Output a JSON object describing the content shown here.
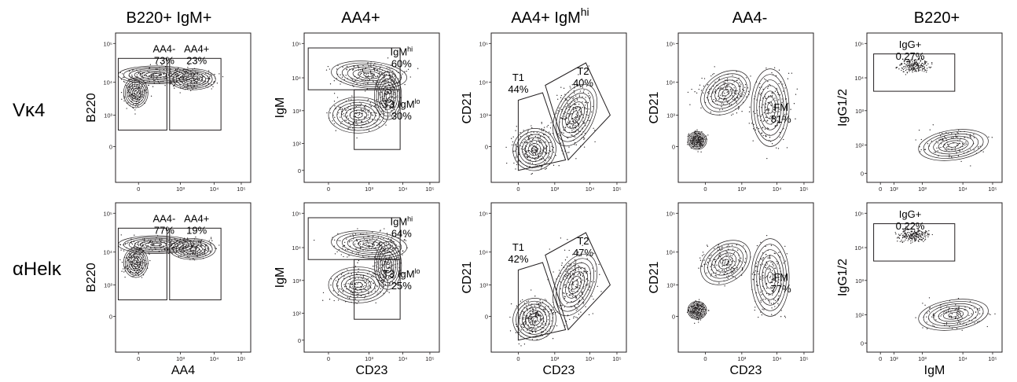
{
  "chart_data": {
    "type": "scatter",
    "subtype": "flow-cytometry contour plots with gates",
    "columns": [
      {
        "title": "B220+ IgM+",
        "xlabel": "AA4",
        "ylabel": "B220",
        "xticks": [
          "0",
          "10³",
          "10⁴",
          "10⁵"
        ],
        "yticks": [
          "0",
          "10³",
          "10⁴",
          "10⁵"
        ]
      },
      {
        "title": "AA4+",
        "xlabel": "CD23",
        "ylabel": "IgM",
        "xticks": [
          "0",
          "10³",
          "10⁴",
          "10⁵"
        ],
        "yticks": [
          "0",
          "10²",
          "10³",
          "10⁴",
          "10⁵"
        ]
      },
      {
        "title": "AA4+ IgM",
        "title_sup": "hi",
        "xlabel": "CD23",
        "ylabel": "CD21",
        "xticks": [
          "0",
          "10³",
          "10⁴",
          "10⁵"
        ],
        "yticks": [
          "0",
          "10³",
          "10⁴",
          "10⁵"
        ]
      },
      {
        "title": "AA4-",
        "xlabel": "CD23",
        "ylabel": "CD21",
        "xticks": [
          "0",
          "10³",
          "10⁴",
          "10⁵"
        ],
        "yticks": [
          "0",
          "10³",
          "10⁴",
          "10⁵"
        ]
      },
      {
        "title": "B220+",
        "xlabel": "IgM",
        "ylabel": "IgG1/2",
        "xticks": [
          "0",
          "10²",
          "10³",
          "10⁴",
          "10⁵"
        ],
        "yticks": [
          "0",
          "10²",
          "10³",
          "10⁴",
          "10⁵"
        ]
      }
    ],
    "rows": [
      {
        "label": "Vκ4",
        "gates": [
          [
            {
              "name": "AA4-",
              "value": "73%"
            },
            {
              "name": "AA4+",
              "value": "23%"
            }
          ],
          [
            {
              "name": "IgM",
              "name_sup": "hi",
              "value": "60%"
            },
            {
              "name": "T3 IgM",
              "name_sup": "lo",
              "value": "30%"
            }
          ],
          [
            {
              "name": "T1",
              "value": "44%"
            },
            {
              "name": "T2",
              "value": "40%"
            }
          ],
          [
            {
              "name": "FM",
              "value": "81%"
            }
          ],
          [
            {
              "name": "IgG+",
              "value": "0.27%"
            }
          ]
        ]
      },
      {
        "label": "αHelκ",
        "gates": [
          [
            {
              "name": "AA4-",
              "value": "77%"
            },
            {
              "name": "AA4+",
              "value": "19%"
            }
          ],
          [
            {
              "name": "IgM",
              "name_sup": "hi",
              "value": "64%"
            },
            {
              "name": "T3 IgM",
              "name_sup": "lo",
              "value": "25%"
            }
          ],
          [
            {
              "name": "T1",
              "value": "42%"
            },
            {
              "name": "T2",
              "value": "47%"
            }
          ],
          [
            {
              "name": "FM",
              "value": "77%"
            }
          ],
          [
            {
              "name": "IgG+",
              "value": "0.22%"
            }
          ]
        ]
      }
    ],
    "colors": {
      "ink": "#231f20",
      "background": "#ffffff"
    }
  }
}
